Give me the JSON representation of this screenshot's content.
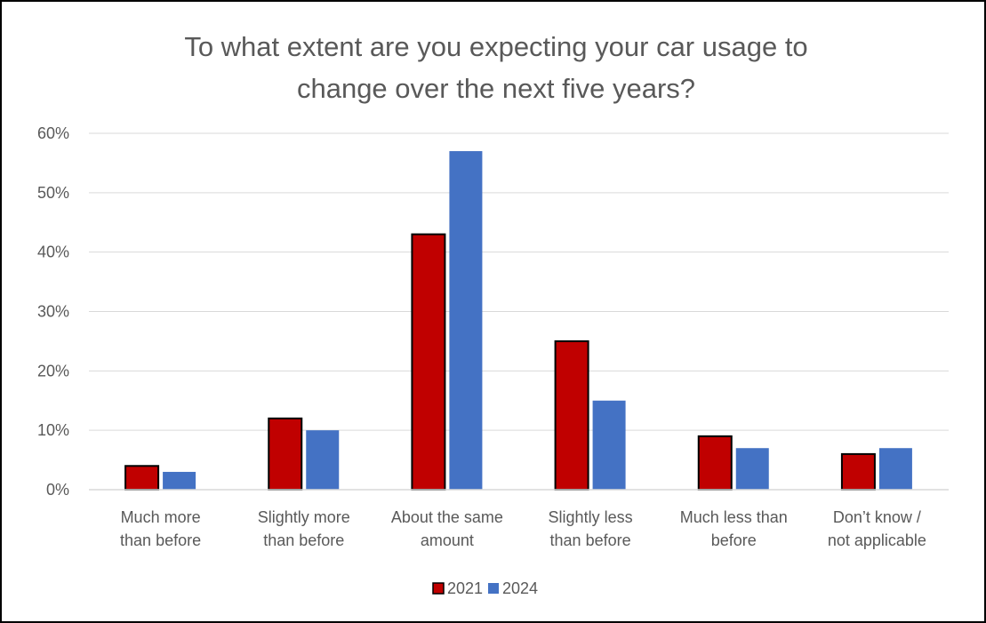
{
  "chart_data": {
    "type": "bar",
    "title_lines": [
      "To what extent are you expecting your car usage to",
      "change over the next five years?"
    ],
    "categories": [
      [
        "Much more",
        "than before"
      ],
      [
        "Slightly more",
        "than before"
      ],
      [
        "About the same",
        "amount"
      ],
      [
        "Slightly less",
        "than before"
      ],
      [
        "Much less than",
        "before"
      ],
      [
        "Don’t know /",
        "not applicable"
      ]
    ],
    "series": [
      {
        "name": "2021",
        "color": "#C00000",
        "outline": "#000000",
        "values": [
          4,
          12,
          43,
          25,
          9,
          6
        ]
      },
      {
        "name": "2024",
        "color": "#4472C4",
        "outline": "",
        "values": [
          3,
          10,
          57,
          15,
          7,
          7
        ]
      }
    ],
    "ylim": [
      0,
      60
    ],
    "yticks": [
      0,
      10,
      20,
      30,
      40,
      50,
      60
    ],
    "ytick_labels": [
      "0%",
      "10%",
      "20%",
      "30%",
      "40%",
      "50%",
      "60%"
    ],
    "xlabel": "",
    "ylabel": "",
    "grid": true,
    "legend_position": "bottom"
  }
}
